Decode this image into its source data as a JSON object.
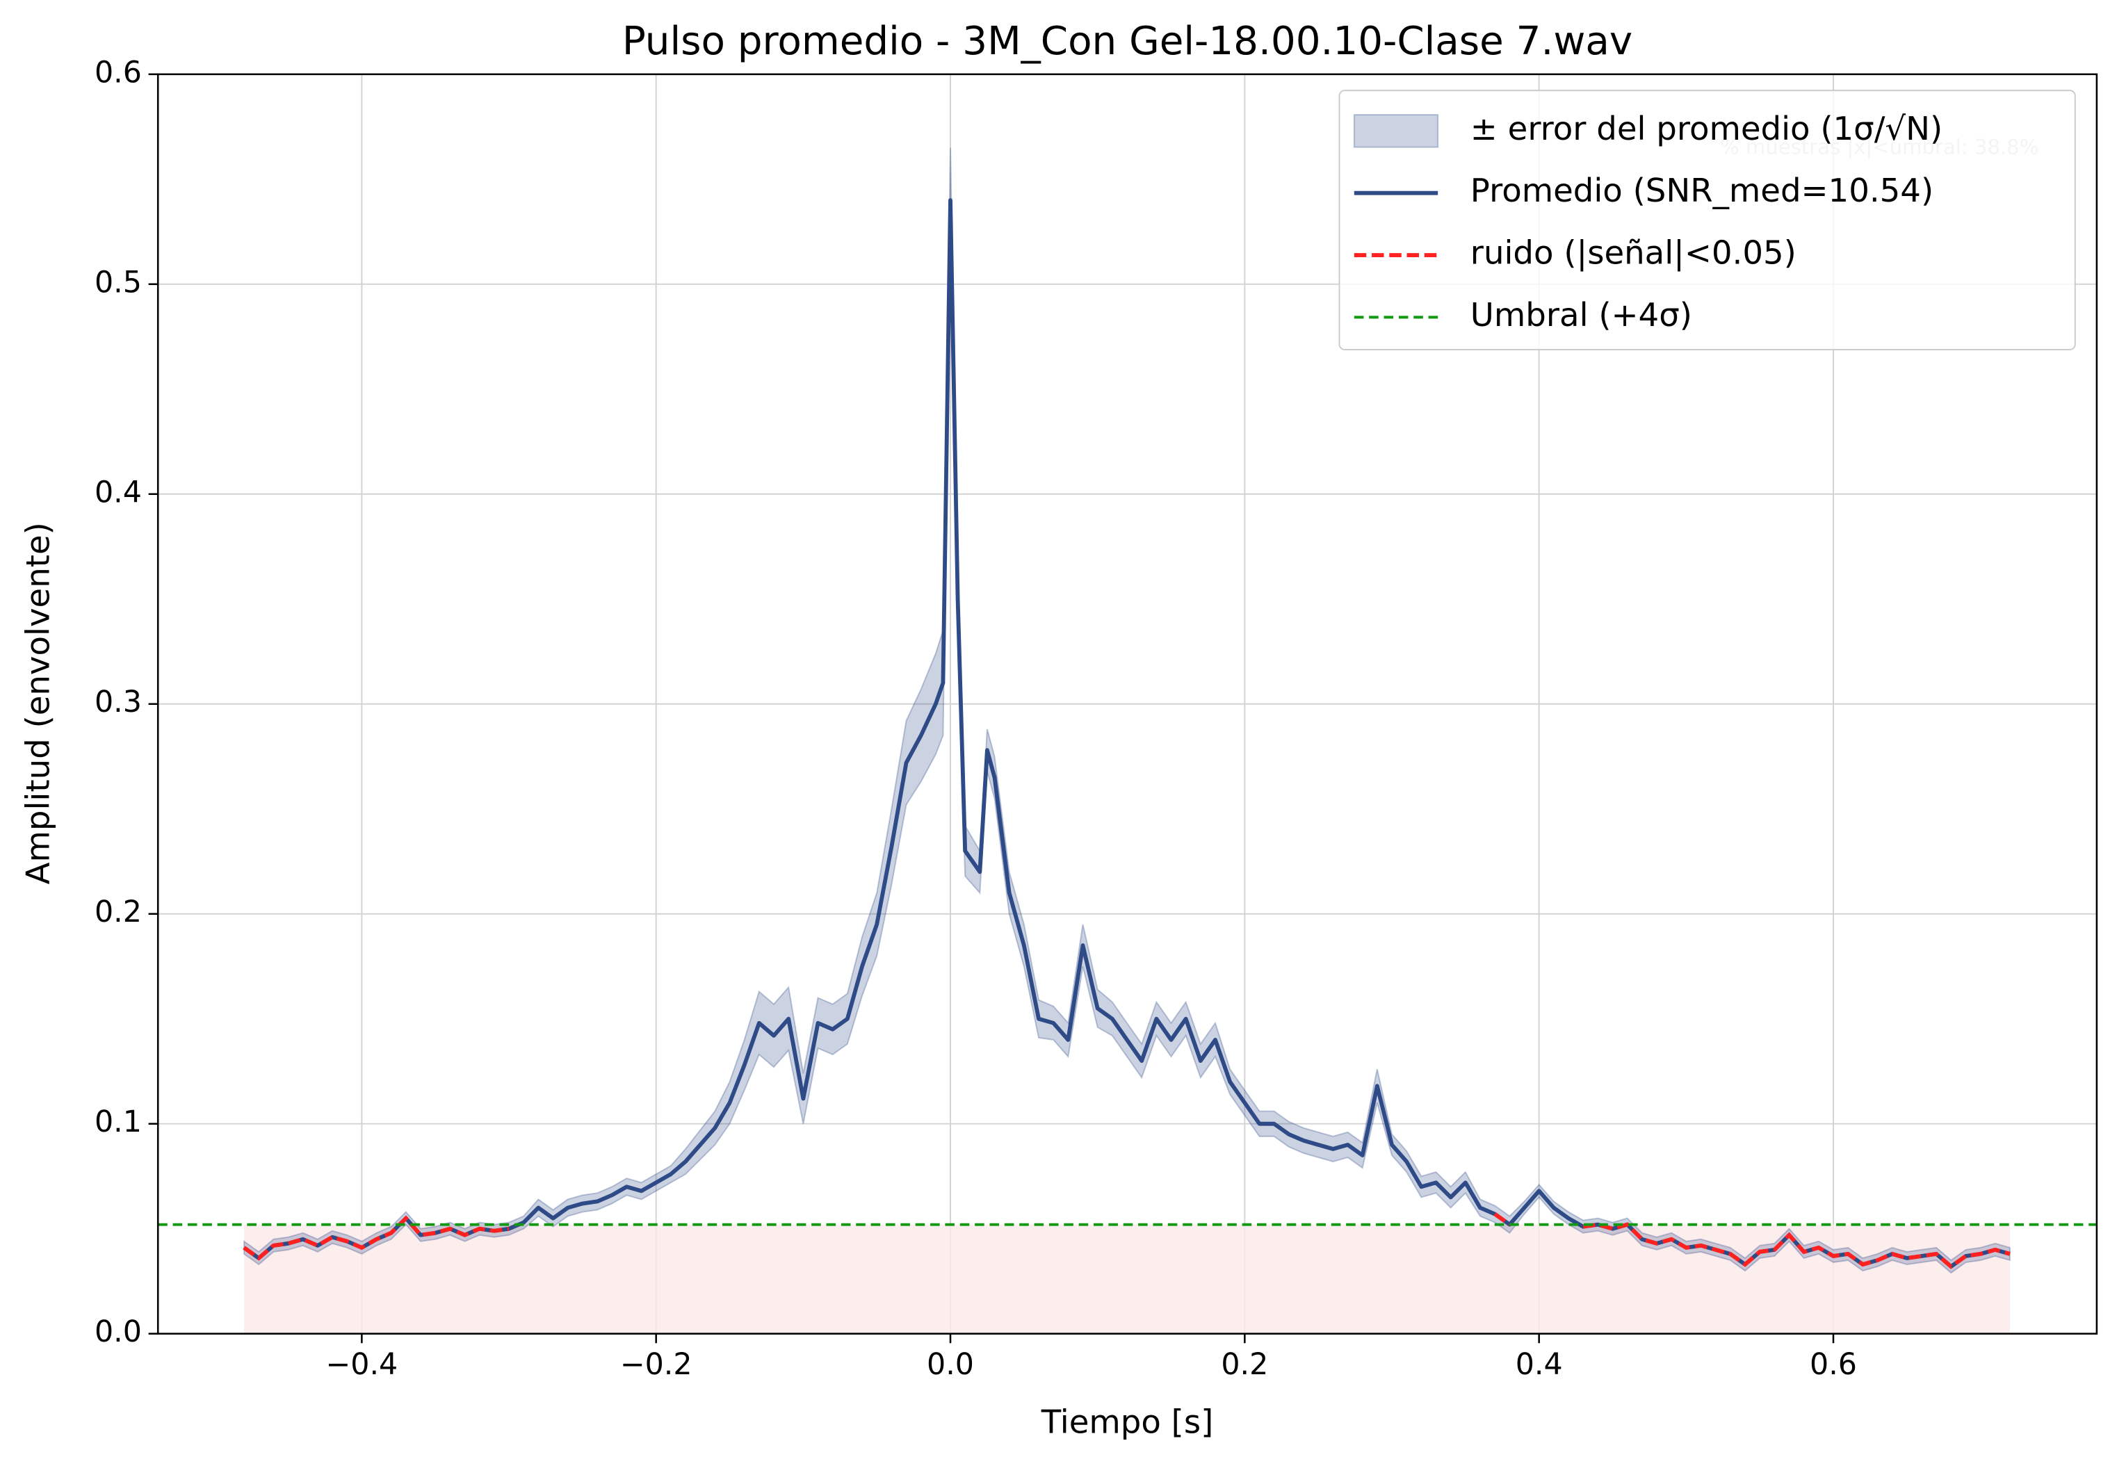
{
  "chart_data": {
    "type": "line",
    "title": "Pulso promedio - 3M_Con Gel-18.00.10-Clase 7.wav",
    "x_label": "Tiempo [s]",
    "y_label": "Amplitud (envolvente)",
    "annotation": "% muestras |x|<umbral: 38.8%",
    "xlim": [
      -0.5385,
      0.779
    ],
    "ylim": [
      0,
      0.6
    ],
    "xticks": [
      {
        "value": -0.4,
        "label": "−0.4"
      },
      {
        "value": -0.2,
        "label": "−0.2"
      },
      {
        "value": 0.0,
        "label": "0.0"
      },
      0.2,
      0.4,
      0.6
    ],
    "yticks": [
      {
        "value": 0.0,
        "label": "0.0"
      },
      0.1,
      0.2,
      0.3,
      0.4,
      0.5,
      0.6
    ],
    "grid": true,
    "legend": "upper right",
    "x": [
      -0.48,
      -0.47,
      -0.46,
      -0.45,
      -0.44,
      -0.43,
      -0.42,
      -0.41,
      -0.4,
      -0.39,
      -0.38,
      -0.37,
      -0.36,
      -0.35,
      -0.34,
      -0.33,
      -0.32,
      -0.31,
      -0.3,
      -0.29,
      -0.28,
      -0.27,
      -0.26,
      -0.25,
      -0.24,
      -0.23,
      -0.22,
      -0.21,
      -0.2,
      -0.19,
      -0.18,
      -0.17,
      -0.16,
      -0.15,
      -0.14,
      -0.13,
      -0.12,
      -0.11,
      -0.1,
      -0.09,
      -0.08,
      -0.07,
      -0.06,
      -0.05,
      -0.04,
      -0.03,
      -0.02,
      -0.01,
      -0.005,
      0.0,
      0.005,
      0.01,
      0.02,
      0.025,
      0.03,
      0.04,
      0.05,
      0.06,
      0.07,
      0.08,
      0.09,
      0.1,
      0.11,
      0.12,
      0.13,
      0.14,
      0.15,
      0.16,
      0.17,
      0.18,
      0.19,
      0.2,
      0.21,
      0.22,
      0.23,
      0.24,
      0.25,
      0.26,
      0.27,
      0.28,
      0.29,
      0.3,
      0.31,
      0.32,
      0.33,
      0.34,
      0.35,
      0.36,
      0.37,
      0.38,
      0.39,
      0.4,
      0.41,
      0.42,
      0.43,
      0.44,
      0.45,
      0.46,
      0.47,
      0.48,
      0.49,
      0.5,
      0.51,
      0.52,
      0.53,
      0.54,
      0.55,
      0.56,
      0.57,
      0.58,
      0.59,
      0.6,
      0.61,
      0.62,
      0.63,
      0.64,
      0.65,
      0.66,
      0.67,
      0.68,
      0.69,
      0.7,
      0.71,
      0.72
    ],
    "series": [
      {
        "name": "± error del promedio (1σ/√N)",
        "kind": "band",
        "of": 1,
        "color": "#2e4a87",
        "error": [
          0.003,
          0.003,
          0.003,
          0.003,
          0.003,
          0.003,
          0.003,
          0.003,
          0.003,
          0.003,
          0.003,
          0.003,
          0.003,
          0.003,
          0.003,
          0.003,
          0.003,
          0.003,
          0.003,
          0.003,
          0.004,
          0.004,
          0.004,
          0.004,
          0.004,
          0.004,
          0.004,
          0.004,
          0.004,
          0.004,
          0.006,
          0.007,
          0.008,
          0.01,
          0.012,
          0.015,
          0.015,
          0.015,
          0.012,
          0.012,
          0.012,
          0.012,
          0.014,
          0.015,
          0.018,
          0.02,
          0.022,
          0.024,
          0.025,
          0.025,
          0.02,
          0.012,
          0.01,
          0.01,
          0.01,
          0.01,
          0.01,
          0.009,
          0.008,
          0.008,
          0.01,
          0.009,
          0.008,
          0.008,
          0.008,
          0.008,
          0.008,
          0.008,
          0.008,
          0.008,
          0.006,
          0.006,
          0.006,
          0.006,
          0.006,
          0.006,
          0.006,
          0.006,
          0.006,
          0.006,
          0.008,
          0.005,
          0.005,
          0.005,
          0.005,
          0.005,
          0.005,
          0.004,
          0.004,
          0.004,
          0.003,
          0.003,
          0.003,
          0.003,
          0.003,
          0.003,
          0.003,
          0.003,
          0.003,
          0.003,
          0.003,
          0.003,
          0.003,
          0.003,
          0.003,
          0.003,
          0.003,
          0.003,
          0.003,
          0.003,
          0.003,
          0.003,
          0.003,
          0.003,
          0.003,
          0.003,
          0.003,
          0.003,
          0.003,
          0.003,
          0.003,
          0.003,
          0.003,
          0.003
        ]
      },
      {
        "name": "Promedio (SNR_med=10.54)",
        "kind": "line",
        "color": "#2e4a87",
        "values": [
          0.041,
          0.036,
          0.042,
          0.043,
          0.045,
          0.042,
          0.046,
          0.044,
          0.041,
          0.045,
          0.048,
          0.055,
          0.047,
          0.048,
          0.05,
          0.047,
          0.05,
          0.049,
          0.05,
          0.053,
          0.06,
          0.055,
          0.06,
          0.062,
          0.063,
          0.066,
          0.07,
          0.068,
          0.072,
          0.076,
          0.082,
          0.09,
          0.098,
          0.11,
          0.128,
          0.148,
          0.142,
          0.15,
          0.112,
          0.148,
          0.145,
          0.15,
          0.175,
          0.195,
          0.232,
          0.272,
          0.285,
          0.3,
          0.31,
          0.54,
          0.35,
          0.23,
          0.22,
          0.278,
          0.265,
          0.21,
          0.185,
          0.15,
          0.148,
          0.14,
          0.185,
          0.155,
          0.15,
          0.14,
          0.13,
          0.15,
          0.14,
          0.15,
          0.13,
          0.14,
          0.12,
          0.11,
          0.1,
          0.1,
          0.095,
          0.092,
          0.09,
          0.088,
          0.09,
          0.085,
          0.118,
          0.09,
          0.082,
          0.07,
          0.072,
          0.065,
          0.072,
          0.06,
          0.057,
          0.052,
          0.06,
          0.068,
          0.06,
          0.055,
          0.051,
          0.052,
          0.05,
          0.052,
          0.045,
          0.043,
          0.045,
          0.041,
          0.042,
          0.04,
          0.038,
          0.033,
          0.039,
          0.04,
          0.047,
          0.039,
          0.041,
          0.037,
          0.038,
          0.033,
          0.035,
          0.038,
          0.036,
          0.037,
          0.038,
          0.032,
          0.037,
          0.038,
          0.04,
          0.038
        ]
      },
      {
        "name": "ruido (|señal|<0.05)",
        "kind": "dashed",
        "color": "#ff2020",
        "values": [
          0.041,
          0.036,
          0.042,
          0.043,
          0.045,
          0.042,
          0.046,
          0.044,
          0.041,
          0.045,
          0.048,
          0.055,
          0.047,
          0.048,
          0.05,
          0.047,
          0.05,
          0.049,
          0.05,
          null,
          null,
          null,
          null,
          null,
          null,
          null,
          null,
          null,
          null,
          null,
          null,
          null,
          null,
          null,
          null,
          null,
          null,
          null,
          null,
          null,
          null,
          null,
          null,
          null,
          null,
          null,
          null,
          null,
          null,
          null,
          null,
          null,
          null,
          null,
          null,
          null,
          null,
          null,
          null,
          null,
          null,
          null,
          null,
          null,
          null,
          null,
          null,
          null,
          null,
          null,
          null,
          null,
          null,
          null,
          null,
          null,
          null,
          null,
          null,
          null,
          null,
          null,
          null,
          null,
          null,
          null,
          null,
          null,
          0.057,
          0.052,
          null,
          null,
          null,
          null,
          0.051,
          0.052,
          0.05,
          0.052,
          0.045,
          0.043,
          0.045,
          0.041,
          0.042,
          0.04,
          0.038,
          0.033,
          0.039,
          0.04,
          0.047,
          0.039,
          0.041,
          0.037,
          0.038,
          0.033,
          0.035,
          0.038,
          0.036,
          0.037,
          0.038,
          0.032,
          0.037,
          0.038,
          0.04,
          0.038
        ]
      },
      {
        "name": "Umbral (+4σ)",
        "kind": "hline",
        "color": "#119911",
        "fill": "#fdeaea",
        "value": 0.052
      }
    ]
  }
}
